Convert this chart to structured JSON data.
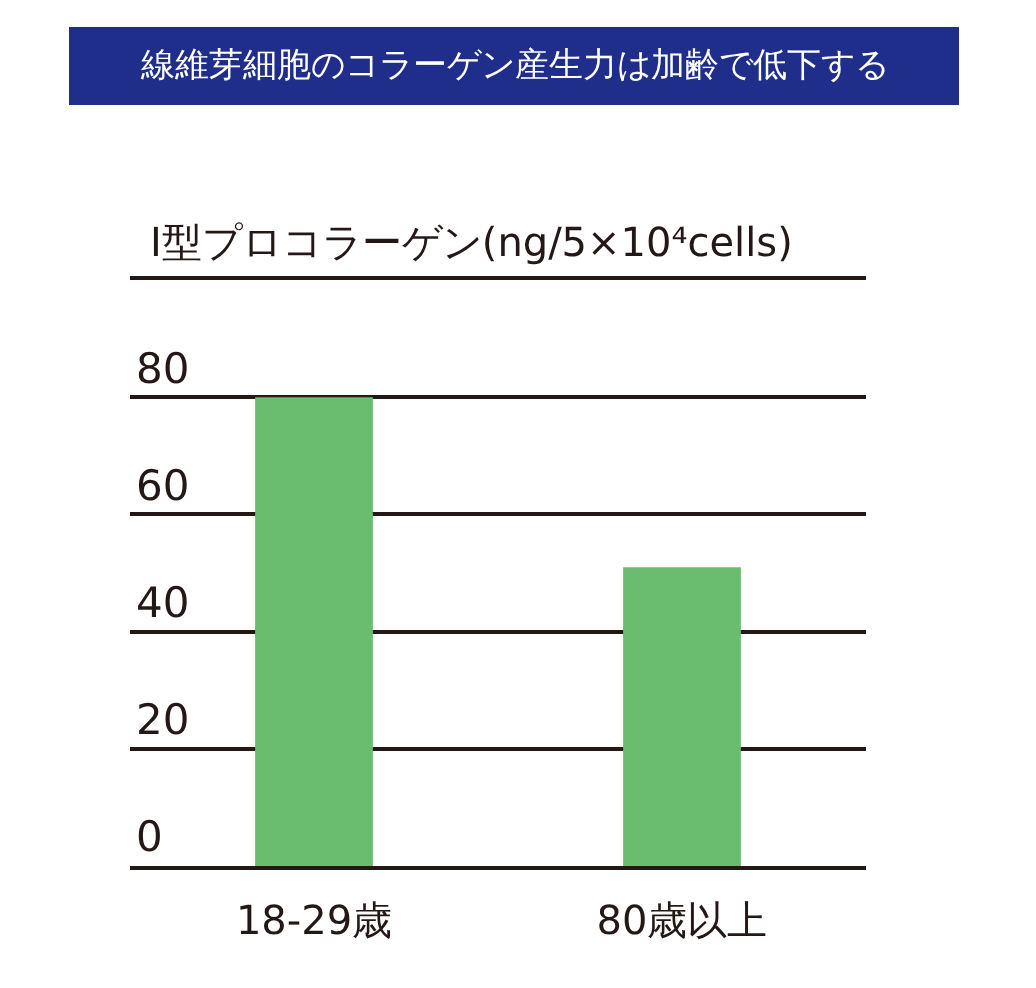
{
  "chart_data": {
    "type": "bar",
    "title": "線維芽細胞のコラーゲン産生力は加齢で低下する",
    "ylabel": "I型プロコラーゲン(ng/5×10⁴cells)",
    "categories": [
      "18-29歳",
      "80歳以上"
    ],
    "values": [
      80,
      51
    ],
    "color": "#6abd6f",
    "ylim": [
      0,
      100
    ],
    "yticks": [
      0,
      20,
      40,
      60,
      80,
      {
        "value": 100,
        "label": null
      }
    ],
    "grid": "y"
  }
}
